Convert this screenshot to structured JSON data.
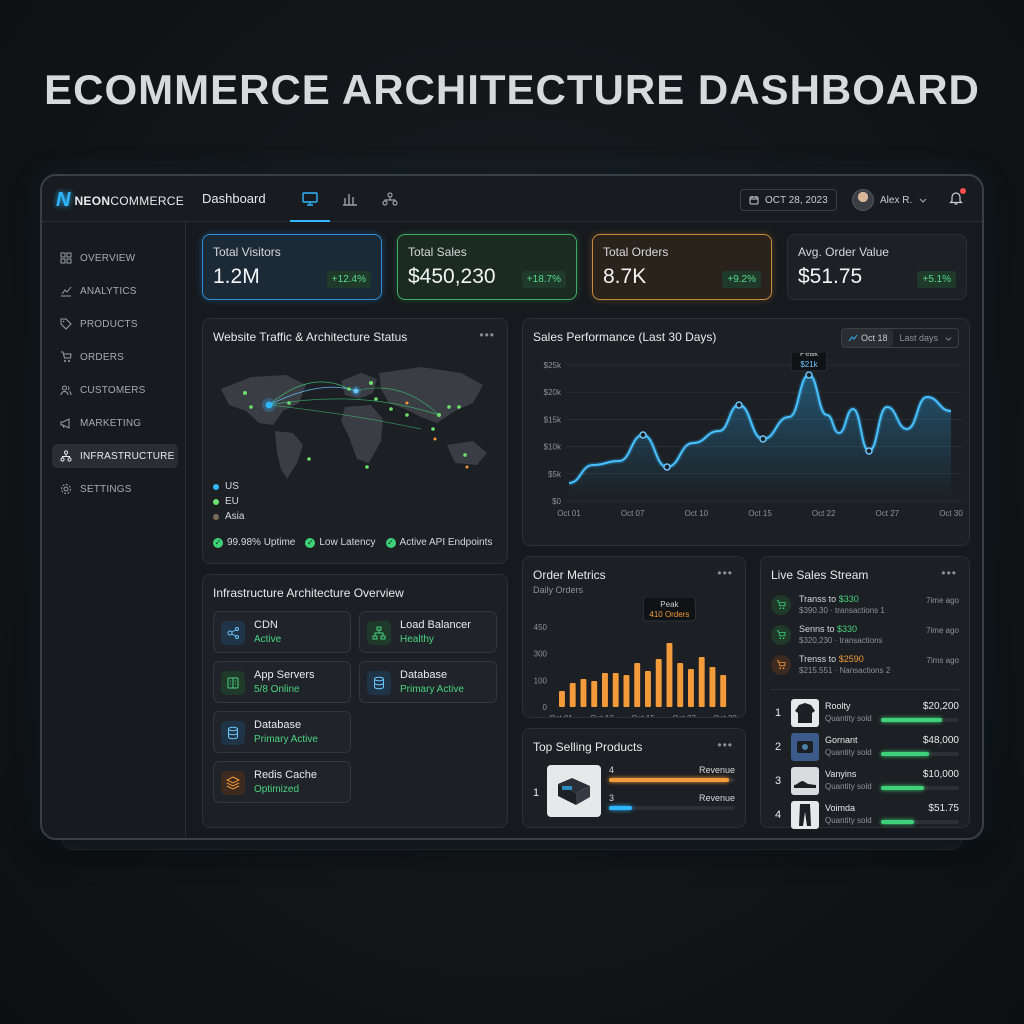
{
  "page": {
    "title": "ECOMMERCE ARCHITECTURE DASHBOARD"
  },
  "topbar": {
    "logo_mark": "N",
    "logo_neon": "NEON",
    "logo_rest": "COMMERCE",
    "title": "Dashboard",
    "date": "OCT 28, 2023",
    "user": "Alex R."
  },
  "sidebar": {
    "items": [
      {
        "label": "OVERVIEW",
        "icon": "grid-icon"
      },
      {
        "label": "ANALYTICS",
        "icon": "line-chart-icon"
      },
      {
        "label": "PRODUCTS",
        "icon": "tag-icon"
      },
      {
        "label": "ORDERS",
        "icon": "cart-icon"
      },
      {
        "label": "CUSTOMERS",
        "icon": "users-icon"
      },
      {
        "label": "MARKETING",
        "icon": "megaphone-icon"
      },
      {
        "label": "INFRASTRUCTURE",
        "icon": "network-icon"
      },
      {
        "label": "SETTINGS",
        "icon": "gear-icon"
      }
    ]
  },
  "kpis": [
    {
      "label": "Total Visitors",
      "value": "1.2M",
      "delta": "+12.4%",
      "color": "#2f8fd6"
    },
    {
      "label": "Total Sales",
      "value": "$450,230",
      "delta": "+18.7%",
      "color": "#3fae62"
    },
    {
      "label": "Total Orders",
      "value": "8.7K",
      "delta": "+9.2%",
      "color": "#c98a3a"
    },
    {
      "label": "Avg. Order Value",
      "value": "$51.75",
      "delta": "+5.1%",
      "color": "#2c3035"
    }
  ],
  "traffic": {
    "title": "Website Traffic & Architecture Status",
    "legend": [
      {
        "label": "US",
        "color": "#2fb6ff"
      },
      {
        "label": "EU",
        "color": "#6ee06e"
      },
      {
        "label": "Asia",
        "color": "#7a6a58"
      }
    ],
    "status": [
      "99.98% Uptime",
      "Low Latency",
      "Active API Endpoints"
    ]
  },
  "infra": {
    "title": "Infrastructure Architecture Overview",
    "tiles": [
      {
        "name": "CDN",
        "status": "Active",
        "icon": "cdn-icon",
        "bg": "#1f3447"
      },
      {
        "name": "Load Balancer",
        "status": "Healthy",
        "icon": "load-balancer-icon",
        "bg": "#1f3a2a"
      },
      {
        "name": "App Servers",
        "status": "5/8 Online",
        "icon": "server-icon",
        "bg": "#1f3a2a"
      },
      {
        "name": "Database",
        "status": "Primary Active",
        "icon": "database-icon",
        "bg": "#1f3447"
      },
      {
        "name": "Database",
        "status": "Primary Active",
        "icon": "database-icon",
        "bg": "#1f3447"
      },
      {
        "name": "Redis Cache",
        "status": "Optimized",
        "icon": "layers-icon",
        "bg": "#3d2a20"
      }
    ]
  },
  "sales_perf": {
    "title": "Sales Performance (Last 30 Days)",
    "pill_date": "Oct 18",
    "pill_range": "Last days",
    "peak_label": "Peak",
    "peak_value": "$21k",
    "y_ticks": [
      "$25k",
      "$20k",
      "$15k",
      "$10k",
      "$5k",
      "$0"
    ],
    "x_ticks": [
      "Oct 01",
      "Oct 07",
      "Oct 10",
      "Oct 15",
      "Oct 22",
      "Oct 27",
      "Oct 30"
    ]
  },
  "order_metrics": {
    "title": "Order Metrics",
    "subtitle": "Daily Orders",
    "peak_label": "Peak",
    "peak_value": "410 Orders",
    "y_ticks": [
      "450",
      "300",
      "100",
      "0"
    ],
    "x_ticks": [
      "Oct 01",
      "Oct 13",
      "Oct 15",
      "Oct 27",
      "Oct 30"
    ]
  },
  "top_selling": {
    "title": "Top Selling Products",
    "rank": "1",
    "rows": [
      {
        "num": "4",
        "label": "Revenue",
        "fill": 0.95,
        "color": "#f39a3a"
      },
      {
        "num": "3",
        "label": "Revenue",
        "fill": 0.18,
        "color": "#2fb6ff"
      }
    ]
  },
  "live_stream": {
    "title": "Live Sales Stream",
    "events": [
      {
        "pre": "Transs to ",
        "amount": "$330",
        "sub": "$390.30 · transactions 1",
        "time": "7ime ago",
        "color": "#3fd17a"
      },
      {
        "pre": "Senns to ",
        "amount": "$330",
        "sub": "$320,230 · transactions",
        "time": "7ime ago",
        "color": "#3fd17a"
      },
      {
        "pre": "Trenss to ",
        "amount": "$2590",
        "sub": "$215.551 · Nansactions 2",
        "time": "7ims ago",
        "color": "#f39a3a"
      }
    ],
    "products": [
      {
        "rank": "1",
        "name": "Roolty",
        "sub": "Quantity sold",
        "value": "$20,200",
        "fill": 0.78
      },
      {
        "rank": "2",
        "name": "Gornant",
        "sub": "Quantity sold",
        "value": "$48,000",
        "fill": 0.62
      },
      {
        "rank": "3",
        "name": "Vanyins",
        "sub": "Quantity sold",
        "value": "$10,000",
        "fill": 0.55
      },
      {
        "rank": "4",
        "name": "Voimda",
        "sub": "Quantity sold",
        "value": "$51.75",
        "fill": 0.42
      }
    ]
  }
}
